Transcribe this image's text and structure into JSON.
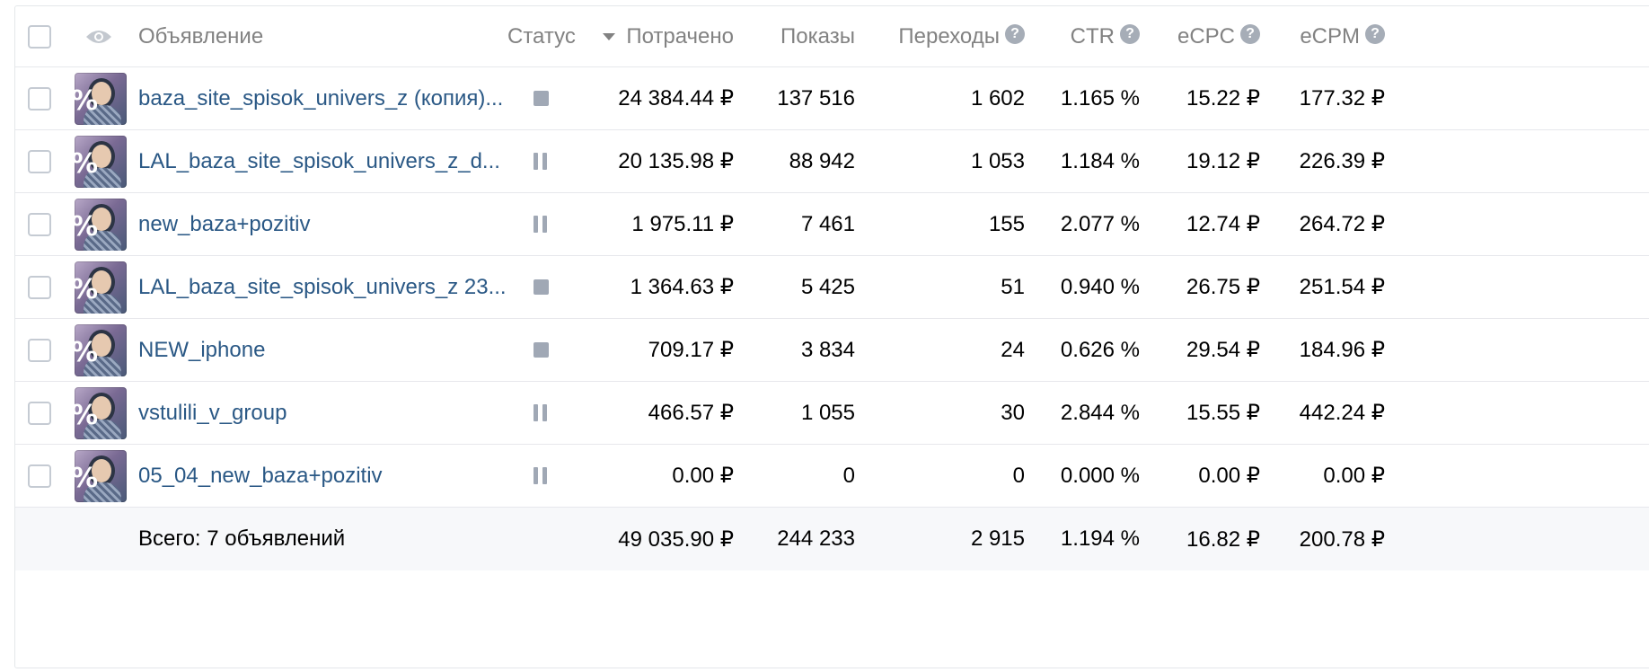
{
  "header": {
    "ad": "Объявление",
    "status": "Статус",
    "spent": "Потрачено",
    "impressions": "Показы",
    "clicks": "Переходы",
    "ctr": "CTR",
    "ecpc": "eCPC",
    "ecpm": "eCPM",
    "help_glyph": "?"
  },
  "rows": [
    {
      "name": "baza_site_spisok_univers_z (копия)...",
      "status": "stopped",
      "spent": "24 384.44 ₽",
      "impressions": "137 516",
      "clicks": "1 602",
      "ctr": "1.165 %",
      "ecpc": "15.22 ₽",
      "ecpm": "177.32 ₽"
    },
    {
      "name": "LAL_baza_site_spisok_univers_z_d...",
      "status": "paused",
      "spent": "20 135.98 ₽",
      "impressions": "88 942",
      "clicks": "1 053",
      "ctr": "1.184 %",
      "ecpc": "19.12 ₽",
      "ecpm": "226.39 ₽"
    },
    {
      "name": "new_baza+pozitiv",
      "status": "paused",
      "spent": "1 975.11 ₽",
      "impressions": "7 461",
      "clicks": "155",
      "ctr": "2.077 %",
      "ecpc": "12.74 ₽",
      "ecpm": "264.72 ₽"
    },
    {
      "name": "LAL_baza_site_spisok_univers_z 23...",
      "status": "stopped",
      "spent": "1 364.63 ₽",
      "impressions": "5 425",
      "clicks": "51",
      "ctr": "0.940 %",
      "ecpc": "26.75 ₽",
      "ecpm": "251.54 ₽"
    },
    {
      "name": "NEW_iphone",
      "status": "stopped",
      "spent": "709.17 ₽",
      "impressions": "3 834",
      "clicks": "24",
      "ctr": "0.626 %",
      "ecpc": "29.54 ₽",
      "ecpm": "184.96 ₽"
    },
    {
      "name": "vstulili_v_group",
      "status": "paused",
      "spent": "466.57 ₽",
      "impressions": "1 055",
      "clicks": "30",
      "ctr": "2.844 %",
      "ecpc": "15.55 ₽",
      "ecpm": "442.24 ₽"
    },
    {
      "name": "05_04_new_baza+pozitiv",
      "status": "paused",
      "spent": "0.00 ₽",
      "impressions": "0",
      "clicks": "0",
      "ctr": "0.000 %",
      "ecpc": "0.00 ₽",
      "ecpm": "0.00 ₽"
    }
  ],
  "totals": {
    "label": "Всего: 7 объявлений",
    "spent": "49 035.90 ₽",
    "impressions": "244 233",
    "clicks": "2 915",
    "ctr": "1.194 %",
    "ecpc": "16.82 ₽",
    "ecpm": "200.78 ₽"
  },
  "colors": {
    "link": "#2a5885",
    "muted": "#828282",
    "status_icon": "#a0a8b5",
    "footer_bg": "#f7f8fa"
  },
  "icons": {
    "visibility": "eye-icon",
    "sort": "sort-desc-icon",
    "help": "help-icon",
    "stopped": "stop-icon",
    "paused": "pause-icon"
  }
}
